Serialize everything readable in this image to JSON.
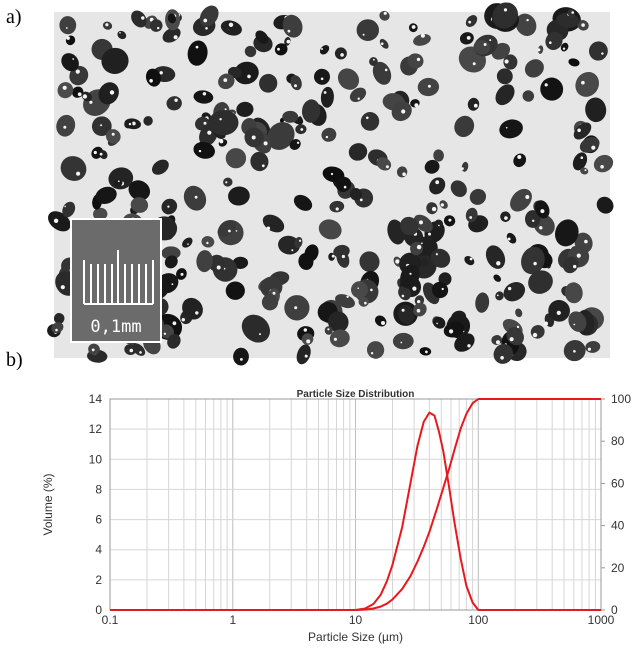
{
  "panels": {
    "a": {
      "label": "a)"
    },
    "b": {
      "label": "b)"
    }
  },
  "micrograph": {
    "scale_bar_text": "0,1mm"
  },
  "chart_data": {
    "type": "line",
    "title": "Particle Size Distribution",
    "xlabel": "Particle Size (µm)",
    "ylabel": "Volume (%)",
    "x_scale": "log",
    "xlim": [
      0.1,
      1000
    ],
    "ylim": [
      0,
      14
    ],
    "y2lim": [
      0,
      100
    ],
    "x_ticks": [
      "0.1",
      "1",
      "10",
      "100",
      "1000"
    ],
    "y_ticks": [
      "0",
      "2",
      "4",
      "6",
      "8",
      "10",
      "12",
      "14"
    ],
    "y2_ticks": [
      "0",
      "20",
      "40",
      "60",
      "80",
      "100"
    ],
    "grid": true,
    "line_color": "#e8191e",
    "series": [
      {
        "axis": "left",
        "x": [
          0.1,
          10,
          12,
          14,
          16,
          18,
          20,
          24,
          28,
          32,
          36,
          40,
          44,
          48,
          52,
          58,
          64,
          72,
          80,
          90,
          100,
          1000
        ],
        "y": [
          0,
          0,
          0.1,
          0.4,
          1.0,
          1.9,
          3.0,
          5.5,
          8.4,
          10.9,
          12.5,
          13.1,
          12.9,
          11.8,
          10.5,
          8.1,
          5.8,
          3.4,
          1.6,
          0.5,
          0,
          0
        ]
      },
      {
        "axis": "right",
        "x": [
          0.1,
          10,
          12,
          14,
          16,
          18,
          20,
          24,
          28,
          32,
          36,
          40,
          46,
          52,
          58,
          64,
          72,
          80,
          90,
          100,
          1000
        ],
        "y": [
          0,
          0,
          0.2,
          0.7,
          1.6,
          3,
          5,
          10,
          16,
          23,
          30,
          37,
          48,
          58,
          67,
          76,
          86,
          93,
          98,
          100,
          100
        ]
      }
    ]
  }
}
